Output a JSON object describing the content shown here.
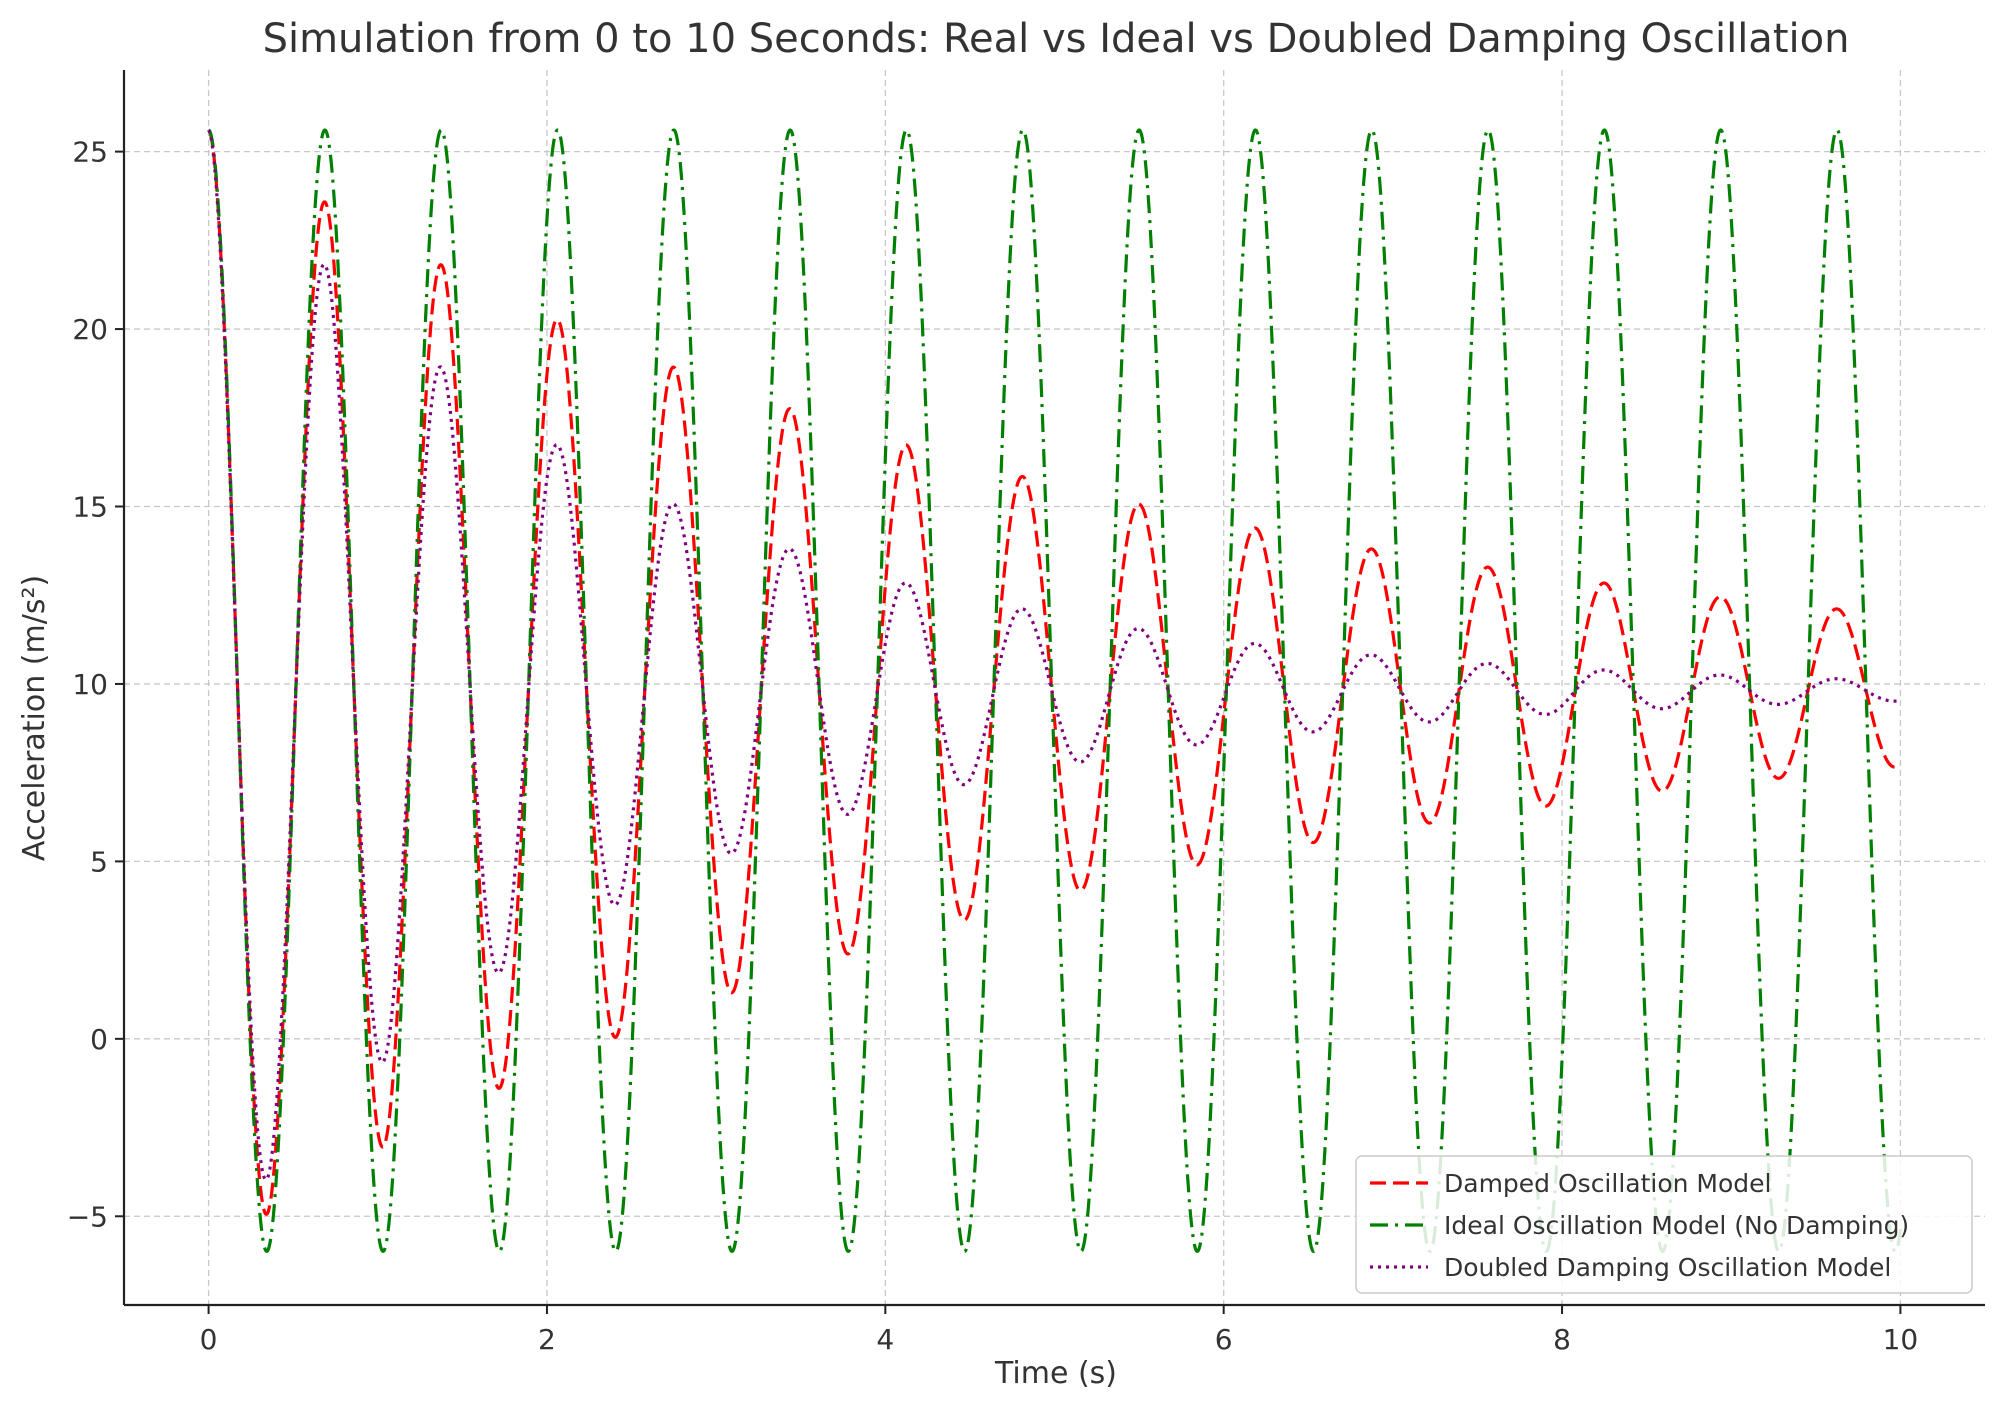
{
  "chart_data": {
    "type": "line",
    "title": "Simulation from 0 to 10 Seconds: Real vs Ideal vs Doubled Damping Oscillation",
    "xlabel": "Time (s)",
    "ylabel": "Acceleration (m/s²)",
    "xlim": [
      -0.5,
      10.5
    ],
    "ylim": [
      -7.5,
      27.3
    ],
    "x_ticks": [
      0,
      2,
      4,
      6,
      8,
      10
    ],
    "x_tick_labels": [
      "0",
      "2",
      "4",
      "6",
      "8",
      "10"
    ],
    "y_ticks": [
      -5,
      0,
      5,
      10,
      15,
      20,
      25
    ],
    "y_tick_labels": [
      "−5",
      "0",
      "5",
      "10",
      "15",
      "20",
      "25"
    ],
    "grid": true,
    "legend_position": "bottom-right",
    "x_range": [
      0,
      10
    ],
    "series": [
      {
        "name": "Damped Oscillation Model",
        "color": "#ff0000",
        "style": "dashed",
        "model": {
          "offset": 9.81,
          "amplitude": 15.8,
          "decay": 0.2,
          "frequency_hz": 1.4545
        }
      },
      {
        "name": "Ideal Oscillation Model (No Damping)",
        "color": "#008000",
        "style": "dashdot",
        "model": {
          "offset": 9.81,
          "amplitude": 15.8,
          "decay": 0,
          "frequency_hz": 1.4545
        }
      },
      {
        "name": "Doubled Damping Oscillation Model",
        "color": "#800080",
        "style": "dotted",
        "model": {
          "offset": 9.81,
          "amplitude": 15.8,
          "decay": 0.4,
          "frequency_hz": 1.4545
        }
      }
    ]
  }
}
